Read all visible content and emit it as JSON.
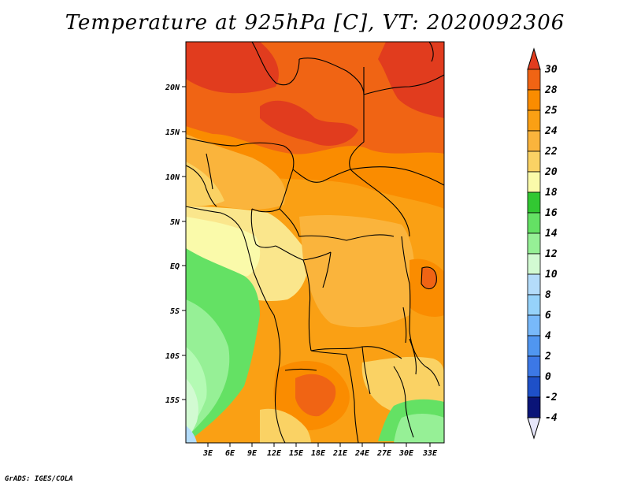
{
  "title": "Temperature at 925hPa [C], VT: 2020092306",
  "credit": "GrADS: IGES/COLA",
  "axes": {
    "lat_labels": [
      "20N",
      "15N",
      "10N",
      "5N",
      "EQ",
      "5S",
      "10S",
      "15S"
    ],
    "lon_labels": [
      "3E",
      "6E",
      "9E",
      "12E",
      "15E",
      "18E",
      "21E",
      "24E",
      "27E",
      "30E",
      "33E"
    ]
  },
  "colorbar": {
    "labels": [
      "30",
      "28",
      "25",
      "24",
      "22",
      "20",
      "18",
      "16",
      "14",
      "12",
      "10",
      "8",
      "6",
      "4",
      "2",
      "0",
      "-2",
      "-4"
    ],
    "colors": [
      "#fa3c3c",
      "#f06414",
      "#fa8c00",
      "#faa014",
      "#fab43c",
      "#fad264",
      "#fae68c",
      "#fafaaa",
      "#32c832",
      "#64e164",
      "#96f096",
      "#b4fab4",
      "#d2fad2",
      "#b4dcfa",
      "#96d2fa",
      "#78b9fa",
      "#5096f0",
      "#3c78e6",
      "#1e50c8",
      "#1430a0",
      "#0a1478",
      "#e6e6fa"
    ]
  },
  "palette": {
    "deep_red": "#e13c1e",
    "red_orange": "#f06414",
    "orange": "#fa8c00",
    "light_orange": "#faa014",
    "tan": "#fab43c",
    "yellow": "#fad264",
    "pale_yellow": "#fae68c",
    "cream": "#fafaaa",
    "green": "#64e164",
    "light_green": "#96f096",
    "pale_green": "#b4fab4",
    "sky": "#d2fad2",
    "pale_blue": "#b4dcfa"
  }
}
